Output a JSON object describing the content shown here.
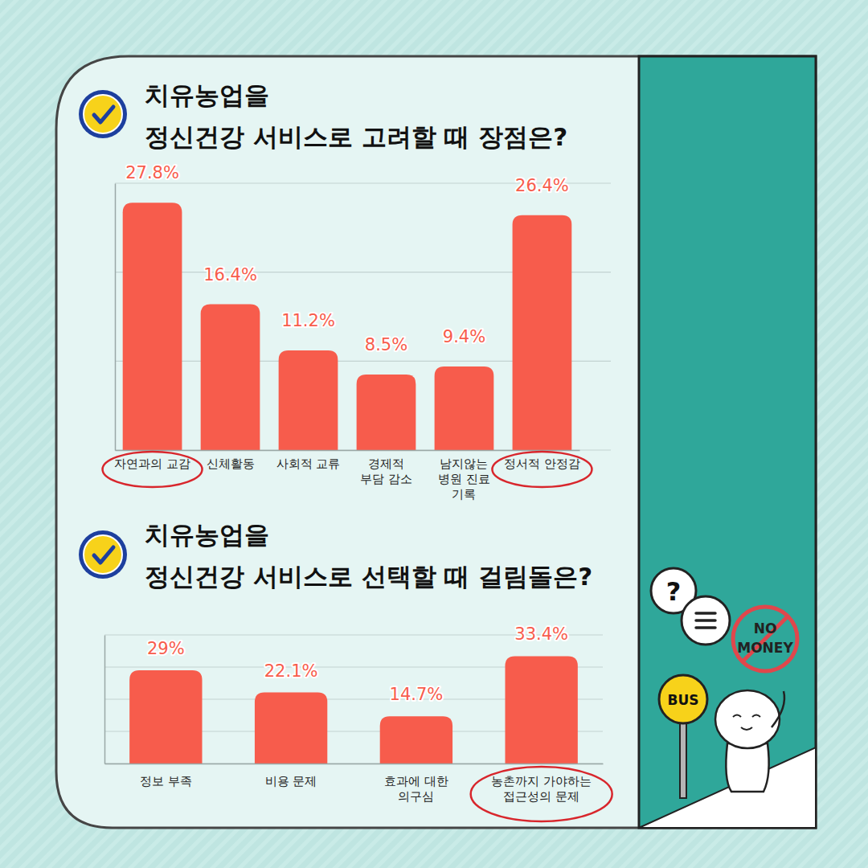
{
  "chart_data": [
    {
      "type": "bar",
      "title": "치유농업을\n정신건강 서비스로 고려할 때 장점은?",
      "categories": [
        "자연과의 교감",
        "신체활동",
        "사회적 교류",
        "경제적\n부담 감소",
        "남지않는\n병원 진료\n기록",
        "정서적 안정감"
      ],
      "values": [
        27.8,
        16.4,
        11.2,
        8.5,
        9.4,
        26.4
      ],
      "value_labels": [
        "27.8%",
        "16.4%",
        "11.2%",
        "8.5%",
        "9.4%",
        "26.4%"
      ],
      "color": "#f75c4c",
      "ylim": [
        0,
        30
      ],
      "yticks": [
        0,
        10,
        20,
        30
      ],
      "grid": true,
      "data_labels": true,
      "tick_labels": "x"
    },
    {
      "type": "bar",
      "title": "치유농업을\n정신건강 서비스로 선택할 때 걸림돌은?",
      "categories": [
        "정보 부족",
        "비용 문제",
        "효과에 대한\n의구심",
        "농촌까지 가야하는\n접근성의 문제"
      ],
      "values": [
        29,
        22.1,
        14.7,
        33.4
      ],
      "value_labels": [
        "29%",
        "22.1%",
        "14.7%",
        "33.4%"
      ],
      "color": "#f75c4c",
      "ylim": [
        0,
        40
      ],
      "yticks": [
        0,
        10,
        20,
        30,
        40
      ],
      "grid": true,
      "data_labels": true,
      "tick_labels": "x"
    }
  ],
  "illustration": {
    "question": "?",
    "sign": "BUS",
    "badge": "NO\nMONEY"
  }
}
